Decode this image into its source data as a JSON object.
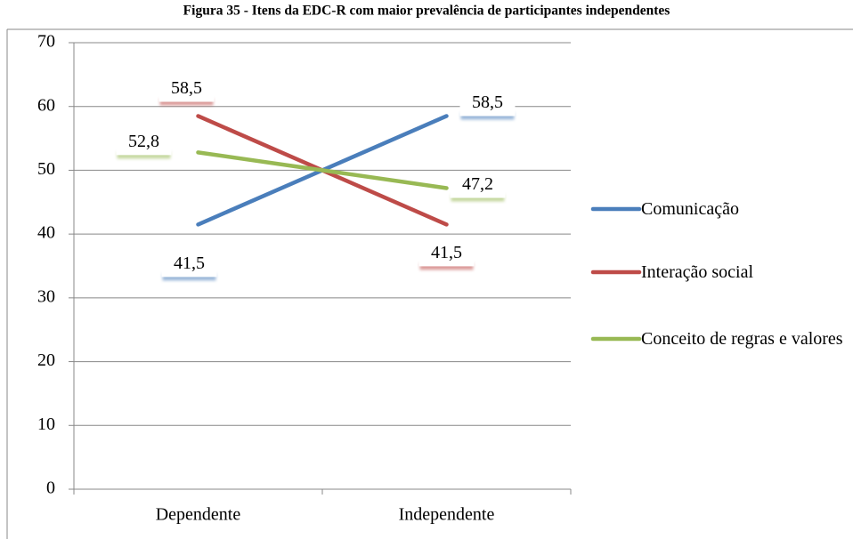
{
  "chart_data": {
    "type": "line",
    "title": "Figura 35 - Itens da EDC-R com maior prevalência de participantes independentes",
    "categories": [
      "Dependente",
      "Independente"
    ],
    "series": [
      {
        "name": "Comunicação",
        "color": "#4a7ebb",
        "values": [
          41.5,
          58.5
        ],
        "value_labels": [
          "41,5",
          "58,5"
        ]
      },
      {
        "name": "Interação social",
        "color": "#be4b48",
        "values": [
          58.5,
          41.5
        ],
        "value_labels": [
          "58,5",
          "41,5"
        ]
      },
      {
        "name": "Conceito de regras e valores",
        "color": "#98b954",
        "values": [
          52.8,
          47.2
        ],
        "value_labels": [
          "52,8",
          "47,2"
        ]
      }
    ],
    "ylim": [
      0,
      70
    ],
    "yticks": [
      0,
      10,
      20,
      30,
      40,
      50,
      60,
      70
    ],
    "grid": true,
    "legend": "right"
  }
}
